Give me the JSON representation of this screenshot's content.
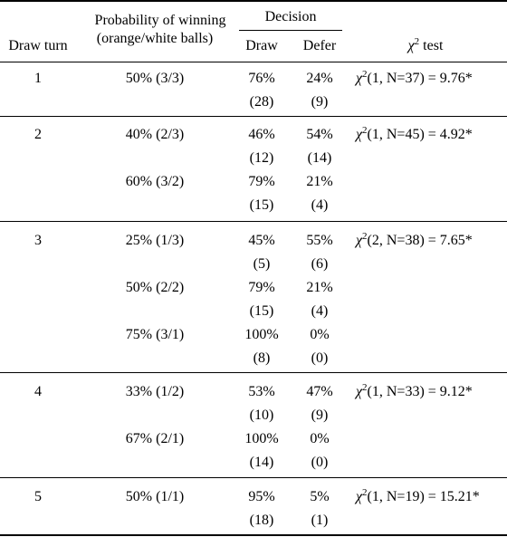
{
  "header": {
    "draw_turn": "Draw turn",
    "prob_line1": "Probability of winning",
    "prob_line2": "(orange/white balls)",
    "decision": "Decision",
    "draw": "Draw",
    "defer": "Defer",
    "chi_symbol": "χ",
    "chi_sup": "2",
    "chi_rest": " test"
  },
  "groups": [
    {
      "turn": "1",
      "chi": {
        "symbol": "χ",
        "sup": "2",
        "text": "(1, N=37) = 9.76*"
      },
      "rows": [
        {
          "prob": "50% (3/3)",
          "draw_pct": "76%",
          "defer_pct": "24%",
          "draw_n": "(28)",
          "defer_n": "(9)"
        }
      ]
    },
    {
      "turn": "2",
      "chi": {
        "symbol": "χ",
        "sup": "2",
        "text": "(1, N=45) = 4.92*"
      },
      "rows": [
        {
          "prob": "40% (2/3)",
          "draw_pct": "46%",
          "defer_pct": "54%",
          "draw_n": "(12)",
          "defer_n": "(14)"
        },
        {
          "prob": "60% (3/2)",
          "draw_pct": "79%",
          "defer_pct": "21%",
          "draw_n": "(15)",
          "defer_n": "(4)"
        }
      ]
    },
    {
      "turn": "3",
      "chi": {
        "symbol": "χ",
        "sup": "2",
        "text": "(2, N=38) = 7.65*"
      },
      "rows": [
        {
          "prob": "25% (1/3)",
          "draw_pct": "45%",
          "defer_pct": "55%",
          "draw_n": "(5)",
          "defer_n": "(6)"
        },
        {
          "prob": "50% (2/2)",
          "draw_pct": "79%",
          "defer_pct": "21%",
          "draw_n": "(15)",
          "defer_n": "(4)"
        },
        {
          "prob": "75% (3/1)",
          "draw_pct": "100%",
          "defer_pct": "0%",
          "draw_n": "(8)",
          "defer_n": "(0)"
        }
      ]
    },
    {
      "turn": "4",
      "chi": {
        "symbol": "χ",
        "sup": "2",
        "text": "(1, N=33) = 9.12*"
      },
      "rows": [
        {
          "prob": "33% (1/2)",
          "draw_pct": "53%",
          "defer_pct": "47%",
          "draw_n": "(10)",
          "defer_n": "(9)"
        },
        {
          "prob": "67% (2/1)",
          "draw_pct": "100%",
          "defer_pct": "0%",
          "draw_n": "(14)",
          "defer_n": "(0)"
        }
      ]
    },
    {
      "turn": "5",
      "chi": {
        "symbol": "χ",
        "sup": "2",
        "text": "(1, N=19) = 15.21*"
      },
      "rows": [
        {
          "prob": "50% (1/1)",
          "draw_pct": "95%",
          "defer_pct": "5%",
          "draw_n": "(18)",
          "defer_n": "(1)"
        }
      ]
    }
  ]
}
